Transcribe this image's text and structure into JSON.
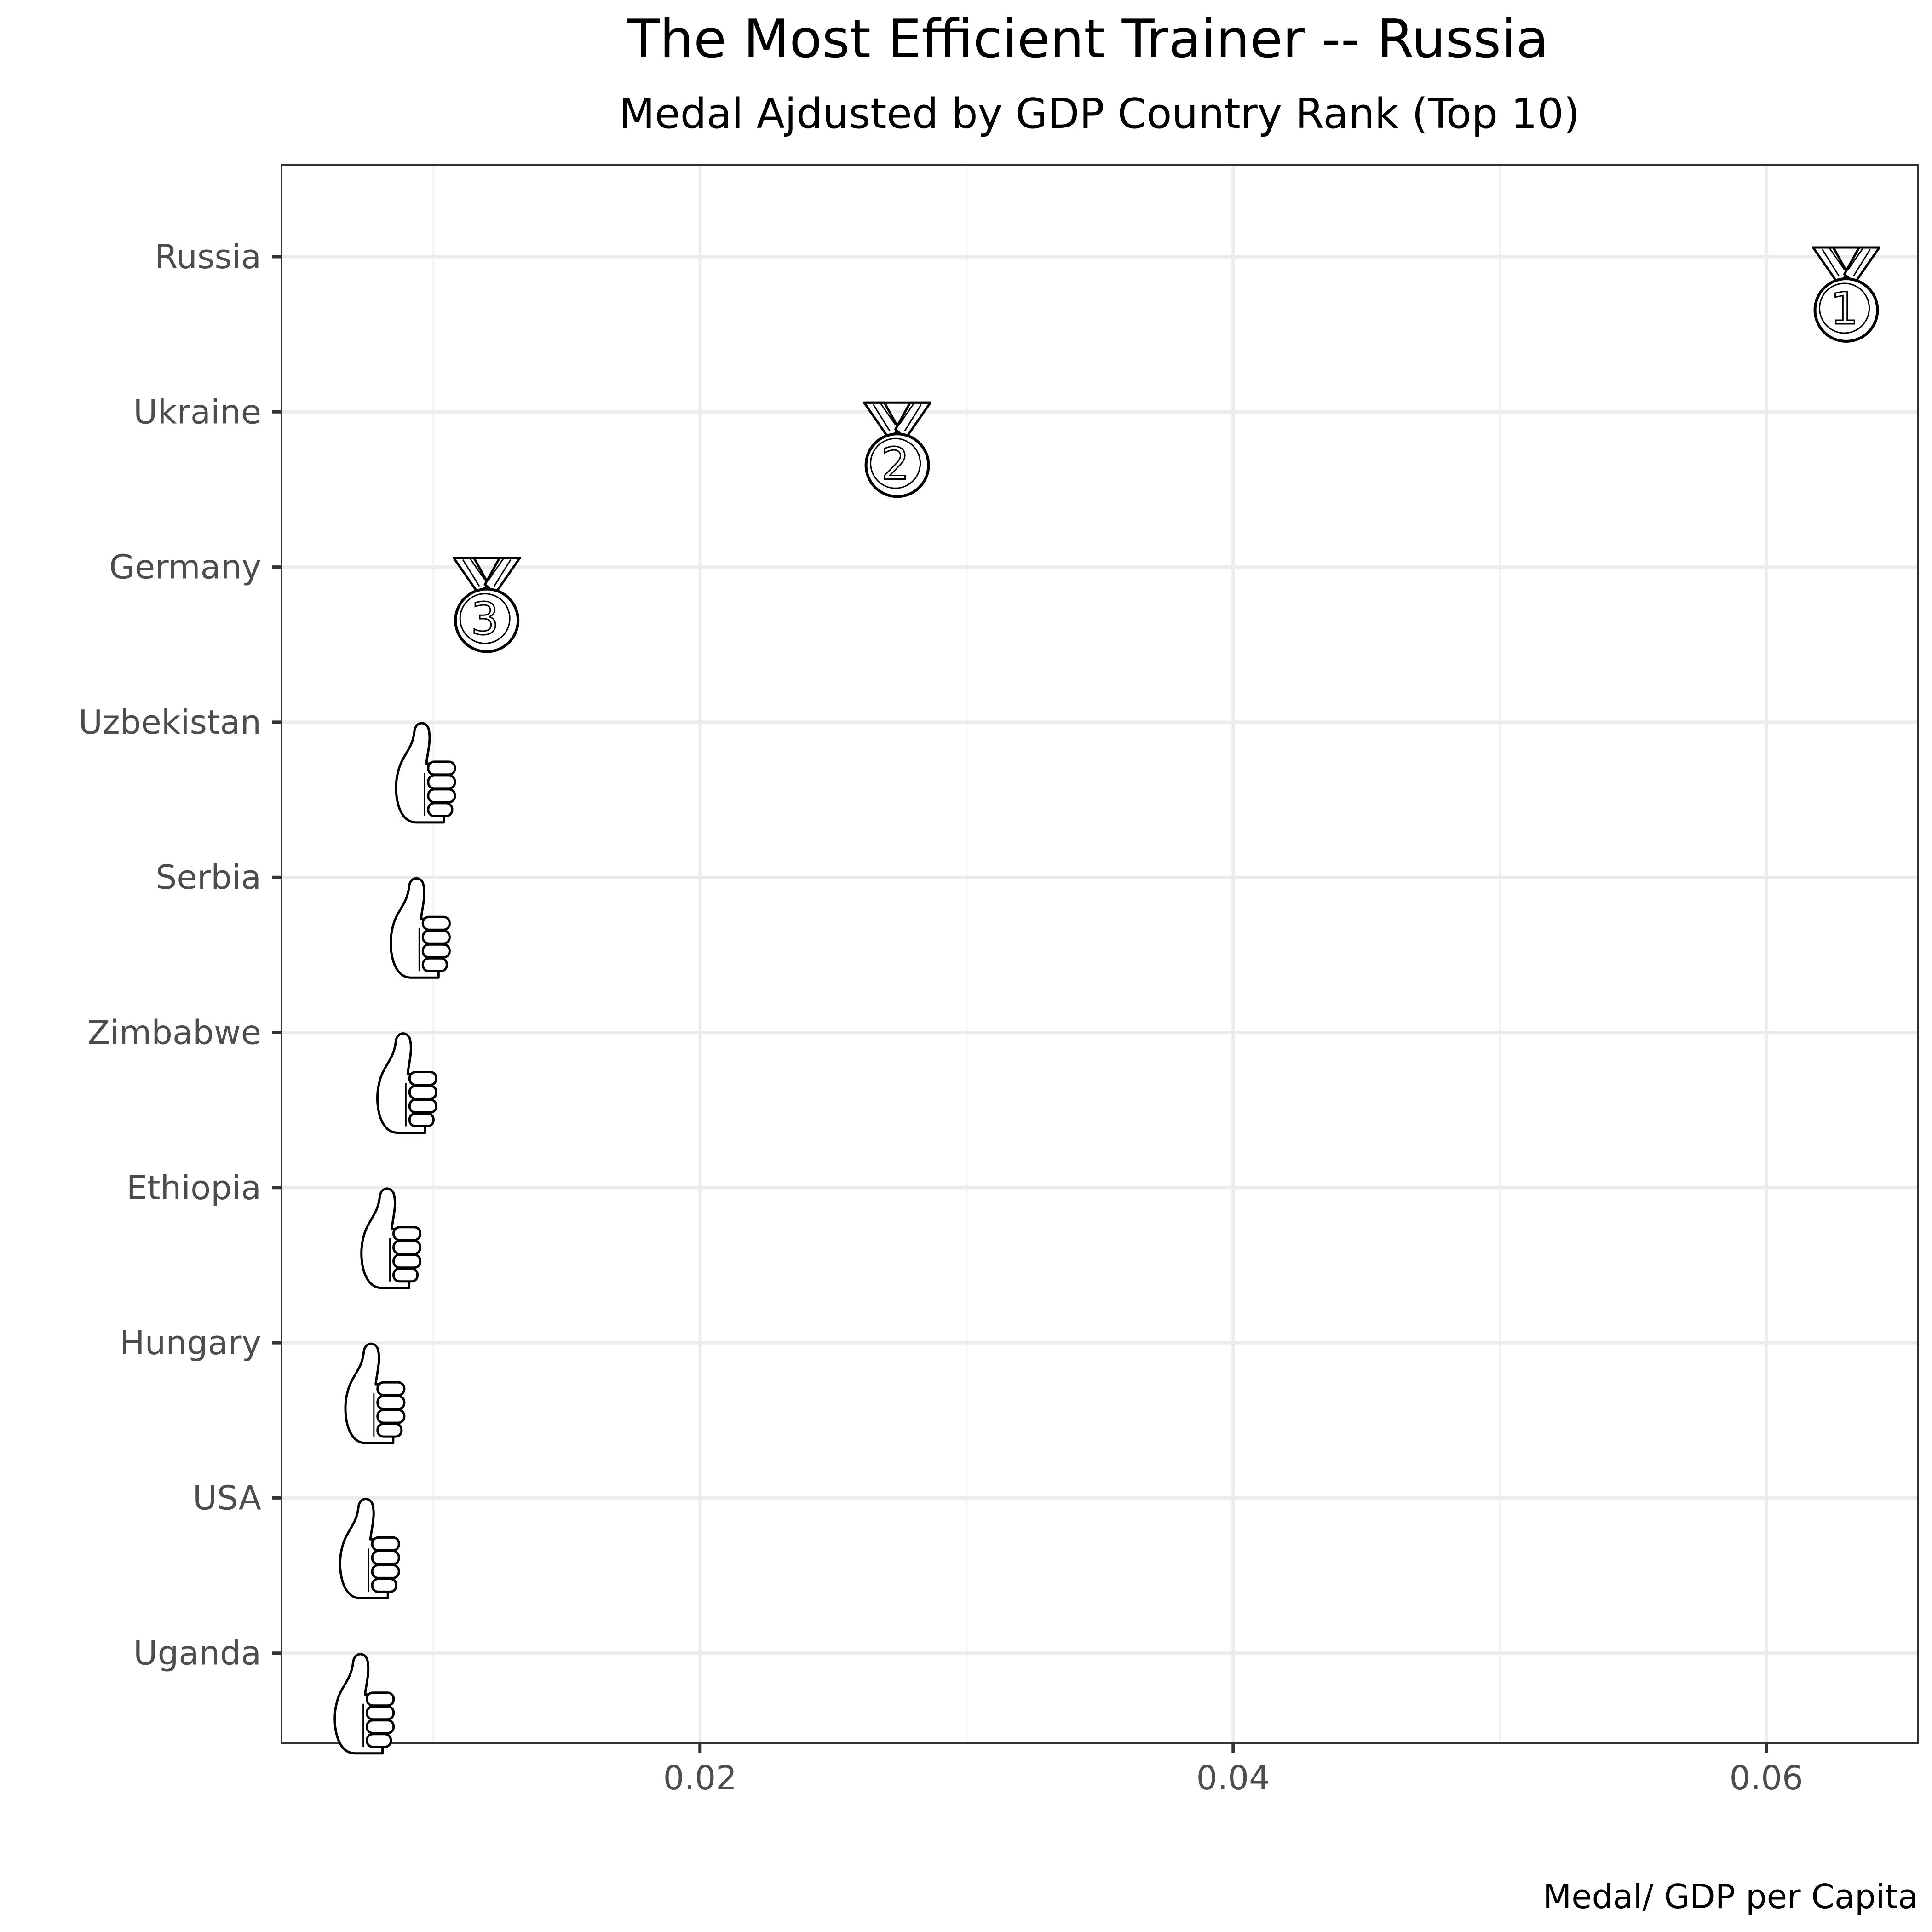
{
  "chart_data": {
    "type": "scatter",
    "title": "The Most Efficient Trainer -- Russia",
    "subtitle": "Medal Ajdusted by GDP Country Rank (Top 10)",
    "xlabel": "Medal/ GDP per Capita",
    "ylabel": "",
    "xlim": [
      0.0043,
      0.0657
    ],
    "x_ticks": [
      0.02,
      0.04,
      0.06
    ],
    "x_tick_labels": [
      "0.02",
      "0.04",
      "0.06"
    ],
    "grid": true,
    "points": [
      {
        "country": "Russia",
        "x": 0.063,
        "marker": "medal-1",
        "marker_icon": "gold-medal-icon"
      },
      {
        "country": "Ukraine",
        "x": 0.0274,
        "marker": "medal-2",
        "marker_icon": "silver-medal-icon"
      },
      {
        "country": "Germany",
        "x": 0.012,
        "marker": "medal-3",
        "marker_icon": "bronze-medal-icon"
      },
      {
        "country": "Uzbekistan",
        "x": 0.0097,
        "marker": "thumbs-up",
        "marker_icon": "thumbs-up-icon"
      },
      {
        "country": "Serbia",
        "x": 0.0095,
        "marker": "thumbs-up",
        "marker_icon": "thumbs-up-icon"
      },
      {
        "country": "Zimbabwe",
        "x": 0.009,
        "marker": "thumbs-up",
        "marker_icon": "thumbs-up-icon"
      },
      {
        "country": "Ethiopia",
        "x": 0.0084,
        "marker": "thumbs-up",
        "marker_icon": "thumbs-up-icon"
      },
      {
        "country": "Hungary",
        "x": 0.0078,
        "marker": "thumbs-up",
        "marker_icon": "thumbs-up-icon"
      },
      {
        "country": "USA",
        "x": 0.0076,
        "marker": "thumbs-up",
        "marker_icon": "thumbs-up-icon"
      },
      {
        "country": "Uganda",
        "x": 0.0074,
        "marker": "thumbs-up",
        "marker_icon": "thumbs-up-icon"
      }
    ],
    "colors": {
      "background": "#ffffff",
      "panel_border": "#333333",
      "grid_major": "#ebebeb",
      "grid_minor": "#f2f2f2",
      "tick_text": "#4d4d4d",
      "marker_stroke": "#000000",
      "marker_fill": "#ffffff"
    }
  }
}
